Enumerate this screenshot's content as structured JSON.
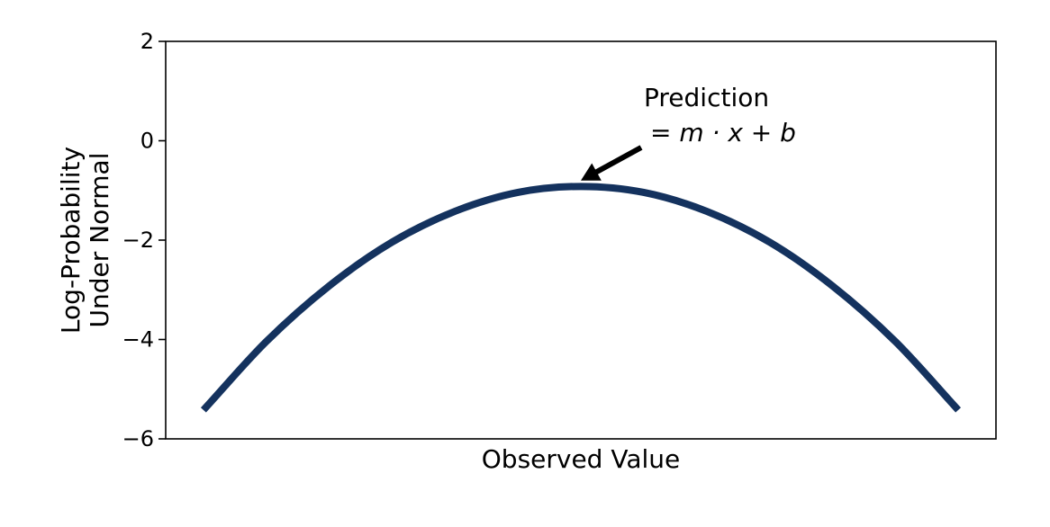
{
  "chart_data": {
    "type": "line",
    "title": "",
    "xlabel": "Observed Value",
    "ylabel_lines": [
      "Log-Probability",
      "Under Normal"
    ],
    "xlim": [
      -3.3,
      3.3
    ],
    "ylim": [
      -6,
      2
    ],
    "yticks": [
      {
        "value": 2,
        "label": "2"
      },
      {
        "value": 0,
        "label": "0"
      },
      {
        "value": -2,
        "label": "−2"
      },
      {
        "value": -4,
        "label": "−4"
      },
      {
        "value": -6,
        "label": "−6"
      }
    ],
    "xticks_shown": false,
    "grid": false,
    "series": [
      {
        "color": "#14325e",
        "x": [
          -3,
          -2.5,
          -2,
          -1.5,
          -1,
          -0.5,
          0,
          0.5,
          1,
          1.5,
          2,
          2.5,
          3
        ],
        "y": [
          -5.42,
          -4.04,
          -2.92,
          -2.04,
          -1.42,
          -1.04,
          -0.92,
          -1.04,
          -1.42,
          -2.04,
          -2.92,
          -4.04,
          -5.42
        ]
      }
    ],
    "annotation": {
      "line1": "Prediction",
      "line2": "= m · x + b",
      "arrow_target": {
        "x": 0,
        "y": -0.8
      }
    }
  }
}
